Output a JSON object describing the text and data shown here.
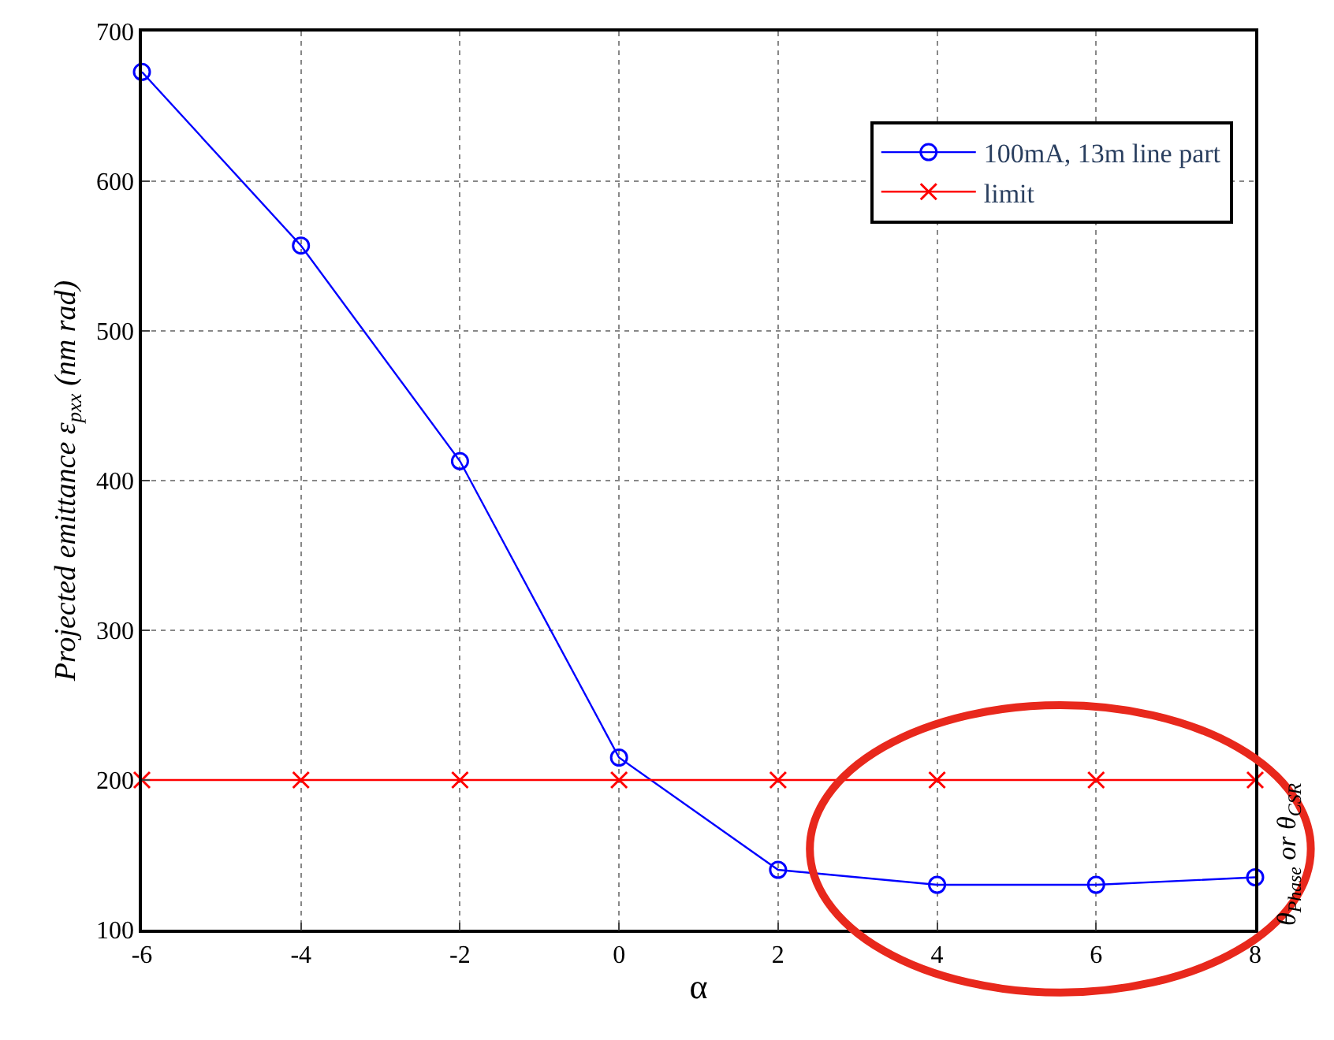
{
  "chart_data": {
    "type": "line",
    "xlabel": "α",
    "ylabel": "Projected emittance ε$_{pxx}$ (nm rad)",
    "x": [
      -6,
      -4,
      -2,
      0,
      2,
      4,
      6,
      8
    ],
    "series": [
      {
        "name": "100mA, 13m line part",
        "color": "#0000ff",
        "marker": "circle",
        "values": [
          673,
          557,
          413,
          215,
          140,
          130,
          130,
          135
        ]
      },
      {
        "name": "limit",
        "color": "#ff0000",
        "marker": "cross",
        "values": [
          200,
          200,
          200,
          200,
          200,
          200,
          200,
          200
        ]
      }
    ],
    "xlim": [
      -6,
      8
    ],
    "xticks": [
      -6,
      -4,
      -2,
      0,
      2,
      4,
      6,
      8
    ],
    "ylim": [
      100,
      700
    ],
    "yticks": [
      100,
      200,
      300,
      400,
      500,
      600,
      700
    ],
    "grid": true,
    "legend": "top right",
    "line_style": "solid",
    "annotations": [
      "θ$_{Phase}$ or θ$_{CSR}$"
    ]
  }
}
